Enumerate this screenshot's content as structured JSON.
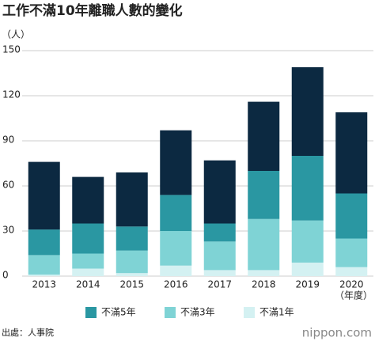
{
  "chart_data": {
    "type": "stacked-bar",
    "title": "工作不滿10年離職人數的變化",
    "ylabel": "（人）",
    "xlabel": "（年度）",
    "categories": [
      "2013",
      "2014",
      "2015",
      "2016",
      "2017",
      "2018",
      "2019",
      "2020"
    ],
    "series": [
      {
        "name": "不滿1年",
        "color": "#d4f1f2",
        "values": [
          1,
          5,
          2,
          7,
          4,
          4,
          9,
          6
        ]
      },
      {
        "name": "不滿3年",
        "color": "#7fd3d5",
        "values": [
          13,
          10,
          15,
          23,
          19,
          34,
          28,
          19
        ]
      },
      {
        "name": "不滿5年",
        "color": "#2a97a2",
        "values": [
          17,
          20,
          16,
          24,
          12,
          32,
          43,
          30
        ]
      },
      {
        "color": "#0c2941",
        "values": [
          45,
          31,
          36,
          43,
          42,
          46,
          59,
          54
        ]
      }
    ],
    "ylim": [
      0,
      150
    ],
    "yticks": [
      0,
      30,
      60,
      90,
      120,
      150
    ],
    "grid": true,
    "source": "出處：人事院",
    "brand": "nippon.com"
  }
}
